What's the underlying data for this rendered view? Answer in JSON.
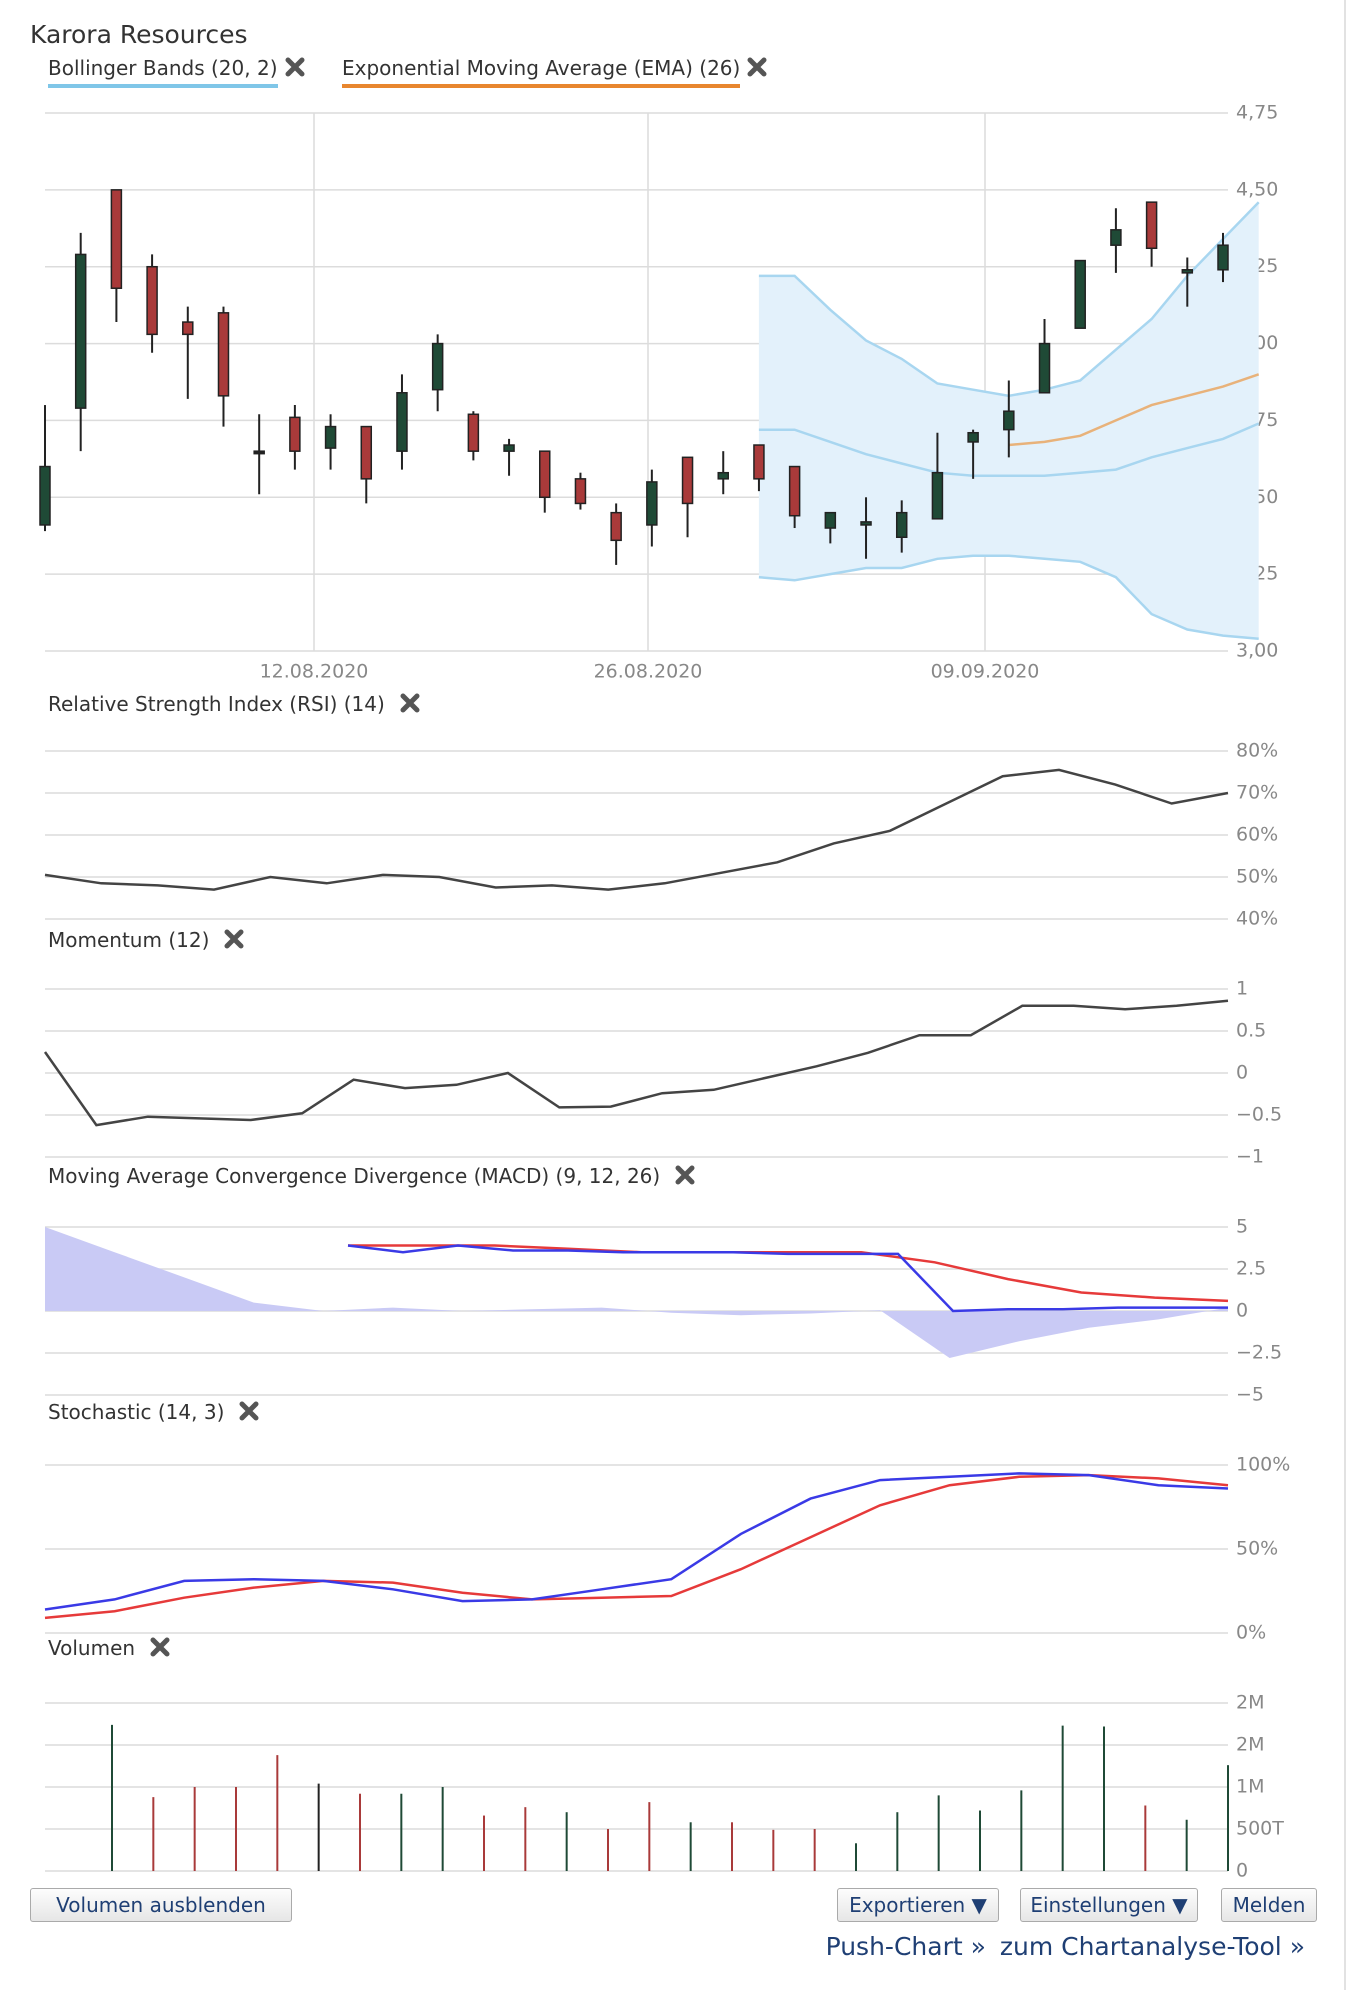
{
  "title": "Karora Resources",
  "overlays": [
    {
      "label": "Bollinger Bands (20, 2)",
      "color": "#7fc6e8"
    },
    {
      "label": "Exponential Moving Average (EMA) (26)",
      "color": "#e8862e"
    }
  ],
  "panel_titles": {
    "rsi": "Relative Strength Index (RSI) (14)",
    "momentum": "Momentum (12)",
    "macd": "Moving Average Convergence Divergence (MACD) (9, 12, 26)",
    "stochastic": "Stochastic (14, 3)",
    "volume": "Volumen"
  },
  "buttons": {
    "hide_volume": "Volumen ausblenden",
    "export": "Exportieren ▼",
    "settings": "Einstellungen ▼",
    "report": "Melden"
  },
  "links": {
    "push": "Push-Chart »",
    "tool": "zum Chartanalyse-Tool »"
  },
  "colors": {
    "up": "#1f4a36",
    "down": "#a93a3a",
    "band_fill": "#e3f1fb",
    "band_line": "#a8d6f0",
    "ema": "#e8b27a",
    "macd_fill": "#c9caf5",
    "blue": "#3a3ae6",
    "red": "#e63a3a",
    "dark": "#444444"
  },
  "chart_data": [
    {
      "type": "candlestick",
      "x_ticks": [
        "12.08.2020",
        "26.08.2020",
        "09.09.2020"
      ],
      "y_ticks": [
        "4,75",
        "4,50",
        "4,25",
        "4,00",
        "3,75",
        "3,50",
        "3,25",
        "3,00"
      ],
      "ylim": [
        3.0,
        4.75
      ],
      "candles": [
        {
          "o": 3.41,
          "h": 3.8,
          "l": 3.39,
          "c": 3.6
        },
        {
          "o": 3.79,
          "h": 4.36,
          "l": 3.65,
          "c": 4.29
        },
        {
          "o": 4.5,
          "h": 4.5,
          "l": 4.07,
          "c": 4.18
        },
        {
          "o": 4.25,
          "h": 4.29,
          "l": 3.97,
          "c": 4.03
        },
        {
          "o": 4.07,
          "h": 4.12,
          "l": 3.82,
          "c": 4.03
        },
        {
          "o": 4.1,
          "h": 4.12,
          "l": 3.73,
          "c": 3.83
        },
        {
          "o": 3.65,
          "h": 3.77,
          "l": 3.51,
          "c": 3.65
        },
        {
          "o": 3.76,
          "h": 3.8,
          "l": 3.59,
          "c": 3.65
        },
        {
          "o": 3.66,
          "h": 3.77,
          "l": 3.59,
          "c": 3.73
        },
        {
          "o": 3.73,
          "h": 3.73,
          "l": 3.48,
          "c": 3.56
        },
        {
          "o": 3.65,
          "h": 3.9,
          "l": 3.59,
          "c": 3.84
        },
        {
          "o": 3.85,
          "h": 4.03,
          "l": 3.78,
          "c": 4.0
        },
        {
          "o": 3.77,
          "h": 3.78,
          "l": 3.62,
          "c": 3.65
        },
        {
          "o": 3.65,
          "h": 3.69,
          "l": 3.57,
          "c": 3.67
        },
        {
          "o": 3.65,
          "h": 3.65,
          "l": 3.45,
          "c": 3.5
        },
        {
          "o": 3.56,
          "h": 3.58,
          "l": 3.46,
          "c": 3.48
        },
        {
          "o": 3.45,
          "h": 3.48,
          "l": 3.28,
          "c": 3.36
        },
        {
          "o": 3.41,
          "h": 3.59,
          "l": 3.34,
          "c": 3.55
        },
        {
          "o": 3.63,
          "h": 3.63,
          "l": 3.37,
          "c": 3.48
        },
        {
          "o": 3.56,
          "h": 3.65,
          "l": 3.51,
          "c": 3.58
        },
        {
          "o": 3.67,
          "h": 3.67,
          "l": 3.52,
          "c": 3.56
        },
        {
          "o": 3.6,
          "h": 3.6,
          "l": 3.4,
          "c": 3.44
        },
        {
          "o": 3.4,
          "h": 3.45,
          "l": 3.35,
          "c": 3.45
        },
        {
          "o": 3.41,
          "h": 3.5,
          "l": 3.3,
          "c": 3.42
        },
        {
          "o": 3.37,
          "h": 3.49,
          "l": 3.32,
          "c": 3.45
        },
        {
          "o": 3.43,
          "h": 3.71,
          "l": 3.43,
          "c": 3.58
        },
        {
          "o": 3.68,
          "h": 3.72,
          "l": 3.56,
          "c": 3.71
        },
        {
          "o": 3.72,
          "h": 3.88,
          "l": 3.63,
          "c": 3.78
        },
        {
          "o": 3.84,
          "h": 4.08,
          "l": 3.84,
          "c": 4.0
        },
        {
          "o": 4.05,
          "h": 4.27,
          "l": 4.05,
          "c": 4.27
        },
        {
          "o": 4.32,
          "h": 4.44,
          "l": 4.23,
          "c": 4.37
        },
        {
          "o": 4.46,
          "h": 4.46,
          "l": 4.25,
          "c": 4.31
        },
        {
          "o": 4.23,
          "h": 4.28,
          "l": 4.12,
          "c": 4.24
        },
        {
          "o": 4.24,
          "h": 4.36,
          "l": 4.2,
          "c": 4.32
        }
      ],
      "bollinger": {
        "start_index": 20,
        "upper": [
          4.22,
          4.22,
          4.11,
          4.01,
          3.95,
          3.87,
          3.85,
          3.83,
          3.85,
          3.88,
          3.98,
          4.08,
          4.22,
          4.34,
          4.46
        ],
        "middle": [
          3.72,
          3.72,
          3.68,
          3.64,
          3.61,
          3.58,
          3.57,
          3.57,
          3.57,
          3.58,
          3.59,
          3.63,
          3.66,
          3.69,
          3.74
        ],
        "lower": [
          3.24,
          3.23,
          3.25,
          3.27,
          3.27,
          3.3,
          3.31,
          3.31,
          3.3,
          3.29,
          3.24,
          3.12,
          3.07,
          3.05,
          3.04
        ]
      },
      "ema": {
        "start_index": 27,
        "values": [
          3.67,
          3.68,
          3.7,
          3.75,
          3.8,
          3.83,
          3.86,
          3.9
        ]
      }
    },
    {
      "type": "line",
      "name": "rsi",
      "y_ticks": [
        "80%",
        "70%",
        "60%",
        "50%",
        "40%"
      ],
      "ylim": [
        40,
        80
      ],
      "values": [
        50.5,
        48.5,
        48.0,
        47.0,
        50.0,
        48.5,
        50.5,
        50.0,
        47.5,
        48.0,
        47.0,
        48.5,
        51.0,
        53.5,
        58.0,
        61.0,
        67.5,
        74.0,
        75.5,
        72.0,
        67.5,
        70.0
      ]
    },
    {
      "type": "line",
      "name": "momentum",
      "y_ticks": [
        "1",
        "0.5",
        "0",
        "−0.5",
        "−1"
      ],
      "ylim": [
        -1,
        1
      ],
      "values": [
        0.25,
        -0.62,
        -0.52,
        -0.54,
        -0.56,
        -0.48,
        -0.08,
        -0.18,
        -0.14,
        0.0,
        -0.41,
        -0.4,
        -0.24,
        -0.2,
        -0.06,
        0.08,
        0.24,
        0.45,
        0.45,
        0.8,
        0.8,
        0.76,
        0.8,
        0.86
      ]
    },
    {
      "type": "area",
      "name": "macd",
      "y_ticks": [
        "5",
        "2.5",
        "0",
        "−2.5",
        "−5"
      ],
      "ylim": [
        -5,
        5
      ],
      "histogram": [
        5.0,
        3.5,
        2.0,
        0.5,
        0.0,
        0.2,
        0.0,
        0.1,
        0.2,
        -0.1,
        -0.25,
        -0.15,
        0.05,
        -2.8,
        -1.8,
        -1.0,
        -0.5,
        0.2
      ],
      "signal": [
        3.9,
        3.9,
        3.9,
        3.7,
        3.5,
        3.5,
        3.5,
        3.5,
        2.9,
        1.9,
        1.1,
        0.8,
        0.6
      ],
      "macd": [
        3.9,
        3.5,
        3.9,
        3.6,
        3.6,
        3.5,
        3.5,
        3.5,
        3.4,
        3.4,
        3.4,
        0.0,
        0.1,
        0.1,
        0.2,
        0.2,
        0.2
      ]
    },
    {
      "type": "line",
      "name": "stochastic",
      "y_ticks": [
        "100%",
        "50%",
        "0%"
      ],
      "ylim": [
        0,
        100
      ],
      "k": [
        14,
        20,
        31,
        32,
        31,
        26,
        19,
        20,
        26,
        32,
        59,
        80,
        91,
        93,
        95,
        94,
        88,
        86
      ],
      "d": [
        9,
        13,
        21,
        27,
        31,
        30,
        24,
        20,
        21,
        22,
        38,
        57,
        76,
        88,
        93,
        94,
        92,
        88
      ]
    },
    {
      "type": "bar",
      "name": "volume",
      "y_ticks": [
        "2M",
        "2M",
        "1M",
        "500T",
        "0"
      ],
      "ylim": [
        0,
        2000000
      ],
      "values": [
        1740000,
        880000,
        1000000,
        1000000,
        1380000,
        1040000,
        920000,
        920000,
        1000000,
        660000,
        760000,
        700000,
        500000,
        820000,
        580000,
        580000,
        490000,
        500000,
        330000,
        700000,
        900000,
        720000,
        960000,
        1730000,
        1720000,
        780000,
        610000,
        1260000
      ],
      "up": [
        true,
        false,
        false,
        false,
        false,
        null,
        false,
        true,
        true,
        false,
        false,
        true,
        false,
        false,
        true,
        false,
        false,
        false,
        true,
        true,
        true,
        true,
        true,
        true,
        true,
        false,
        true,
        true
      ]
    }
  ]
}
